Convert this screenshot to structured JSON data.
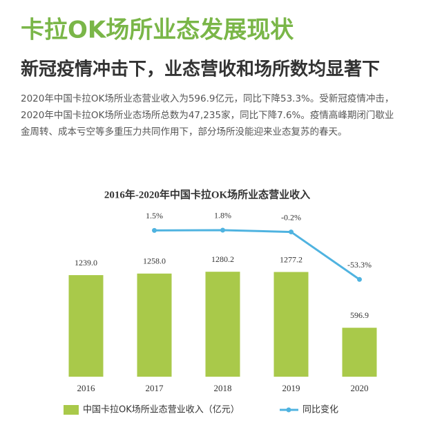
{
  "header": {
    "title": "卡拉OK场所业态发展现状",
    "subtitle": "新冠疫情冲击下，业态营收和场所数均显著下",
    "paragraph": [
      "2020年中国卡拉OK场所业态营业收入为596.9亿元，同比下降53.3%。受新冠疫情冲击，",
      "2020年中国卡拉OK场所业态场所总数为47,235家，同比下降7.6%。疫情高峰期闭门歇业",
      "金周转、成本亏空等多重压力共同作用下，部分场所没能迎来业态复苏的春天。"
    ]
  },
  "chart_data": {
    "type": "bar",
    "title": "2016年-2020年中国卡拉OK场所业态营业收入",
    "categories": [
      "2016",
      "2017",
      "2018",
      "2019",
      "2020"
    ],
    "series": [
      {
        "name": "中国卡拉OK场所业态营业收入（亿元）",
        "color": "#a9c94a",
        "values": [
          1239.0,
          1258.0,
          1280.2,
          1277.2,
          596.9
        ],
        "value_labels": [
          "1239.0",
          "1258.0",
          "1280.2",
          "1277.2",
          "596.9"
        ]
      },
      {
        "name": "同比变化",
        "color": "#4fb3e0",
        "axis": "y2",
        "values": [
          null,
          1.5,
          1.8,
          -0.2,
          -53.3
        ],
        "value_labels": [
          null,
          "1.5%",
          "1.8%",
          "-0.2%",
          "-53.3%"
        ]
      }
    ],
    "ylim": [
      0,
      2150
    ],
    "y2lim": [
      -162,
      35
    ],
    "legend": "bottom"
  }
}
